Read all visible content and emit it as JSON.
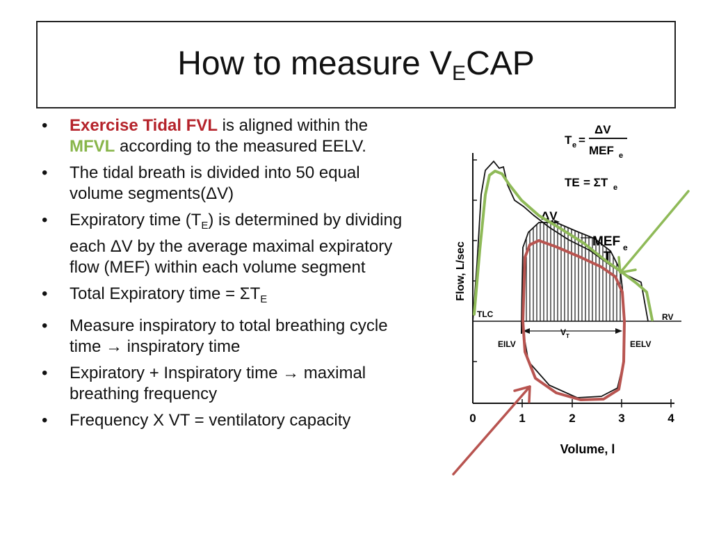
{
  "slide": {
    "title_main": "How to measure V",
    "title_sub": "E",
    "title_tail": "CAP"
  },
  "bullets": [
    {
      "pre": "",
      "highlight_red": "Exercise Tidal FVL",
      "mid": " is aligned within the ",
      "highlight_green": "MFVL",
      "post": " according to the measured EELV."
    },
    {
      "text": "The tidal breath is divided into 50 equal volume segments(ΔV)"
    },
    {
      "pre": "Expiratory time (T",
      "sub": "E",
      "post": ") is determined by dividing each ΔV by the average maximal expiratory flow (MEF) within each volume segment"
    },
    {
      "pre": "Total Expiratory time = ΣT",
      "sub": "E",
      "post": ""
    },
    {
      "text": "Measure inspiratory to total breathing cycle time → inspiratory time"
    },
    {
      "text": "Expiratory + Inspiratory time → maximal breathing frequency"
    },
    {
      "text": "Frequency X VT = ventilatory capacity"
    }
  ],
  "figure": {
    "ylabel": "Flow, L/sec",
    "xlabel": "Volume, l",
    "xticks": [
      "0",
      "1",
      "2",
      "3",
      "4"
    ],
    "eq1_left": "T",
    "eq1_left_sub": "e",
    "eq1_eq": "=",
    "eq1_num": "ΔV",
    "eq1_den": "MEF",
    "eq1_den_sub": "e",
    "eq2_left": "TE",
    "eq2_right": "= ΣT",
    "eq2_right_sub": "e",
    "label_dv": "ΔV",
    "label_mef": "MEF",
    "label_mef_sub": "e",
    "label_t": "T",
    "label_tlc": "TLC",
    "label_rv": "RV",
    "label_eilv": "EILV",
    "label_eelv": "EELV",
    "label_vt": "V",
    "label_vt_sub": "T",
    "colors": {
      "green": "#8fba58",
      "red": "#b85450",
      "ink": "#111111"
    }
  }
}
